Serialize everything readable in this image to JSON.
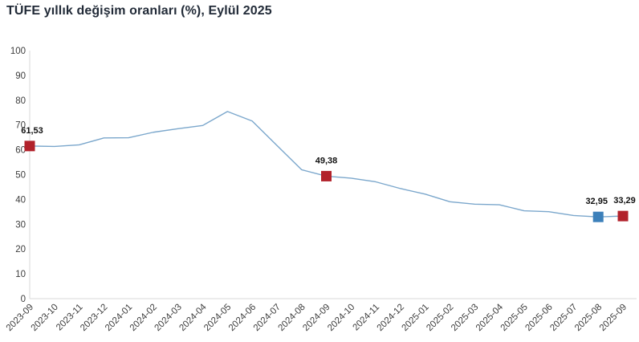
{
  "title": "TÜFE yıllık değişim oranları (%), Eylül 2025",
  "colors": {
    "title_text": "#222b38",
    "axis_line": "#d9d9d9",
    "tick_text": "#3d3d3d",
    "series_line": "#7ba7cc",
    "marker_red": "#b2222b",
    "marker_blue": "#3c80ba",
    "annotation_text": "#111111",
    "background": "#ffffff"
  },
  "chart_data": {
    "type": "line",
    "title": "TÜFE yıllık değişim oranları (%), Eylül 2025",
    "categories": [
      "2023-09",
      "2023-10",
      "2023-11",
      "2023-12",
      "2024-01",
      "2024-02",
      "2024-03",
      "2024-04",
      "2024-05",
      "2024-06",
      "2024-07",
      "2024-08",
      "2024-09",
      "2024-10",
      "2024-11",
      "2024-12",
      "2025-01",
      "2025-02",
      "2025-03",
      "2025-04",
      "2025-05",
      "2025-06",
      "2025-07",
      "2025-08",
      "2025-09"
    ],
    "values": [
      61.53,
      61.36,
      61.98,
      64.77,
      64.86,
      67.07,
      68.5,
      69.8,
      75.45,
      71.6,
      61.78,
      51.97,
      49.38,
      48.58,
      47.09,
      44.38,
      42.12,
      39.05,
      38.1,
      37.86,
      35.41,
      35.05,
      33.52,
      32.95,
      33.29
    ],
    "ylim": [
      0,
      100
    ],
    "ytick_step": 10,
    "grid": false,
    "legend": "none",
    "line_color": "#7ba7cc",
    "axis_color": "#d9d9d9",
    "annotations": [
      {
        "index": 0,
        "label": "61,53",
        "marker_color": "#b2222b",
        "dx": 3
      },
      {
        "index": 12,
        "label": "49,38",
        "marker_color": "#b2222b",
        "dx": 0
      },
      {
        "index": 23,
        "label": "32,95",
        "marker_color": "#3c80ba",
        "dx": -2
      },
      {
        "index": 24,
        "label": "33,29",
        "marker_color": "#b2222b",
        "dx": 2
      }
    ]
  }
}
